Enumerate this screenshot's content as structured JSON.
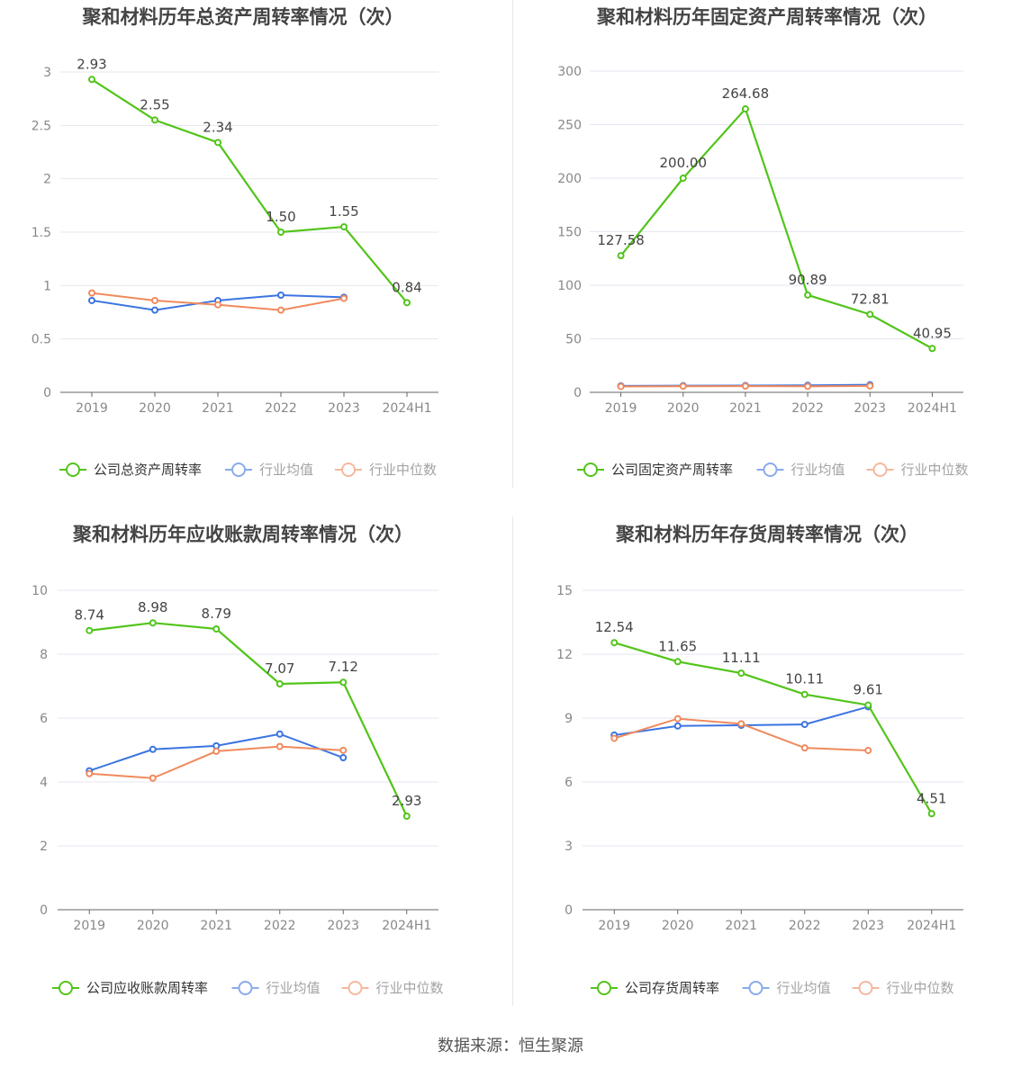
{
  "colors": {
    "company": "#52c41a",
    "industry_avg": "#3b74e0",
    "industry_median": "#f08a5d"
  },
  "legend_labels": {
    "avg": "行业均值",
    "median": "行业中位数"
  },
  "footer": "数据来源：恒生聚源",
  "chart_data": [
    {
      "type": "line",
      "title": "聚和材料历年总资产周转率情况（次）",
      "categories": [
        "2019",
        "2020",
        "2021",
        "2022",
        "2023",
        "2024H1"
      ],
      "ylim": [
        0,
        3
      ],
      "yticks": [
        "0",
        "0.5",
        "1",
        "1.5",
        "2",
        "2.5",
        "3"
      ],
      "series": [
        {
          "name": "公司总资产周转率",
          "key": "company",
          "values": [
            2.93,
            2.55,
            2.34,
            1.5,
            1.55,
            0.84
          ],
          "labels": [
            "2.93",
            "2.55",
            "2.34",
            "1.50",
            "1.55",
            "0.84"
          ]
        },
        {
          "name": "行业均值",
          "key": "avg",
          "values": [
            0.86,
            0.77,
            0.86,
            0.91,
            0.89,
            null
          ]
        },
        {
          "name": "行业中位数",
          "key": "median",
          "values": [
            0.93,
            0.86,
            0.82,
            0.77,
            0.88,
            null
          ]
        }
      ]
    },
    {
      "type": "line",
      "title": "聚和材料历年固定资产周转率情况（次）",
      "categories": [
        "2019",
        "2020",
        "2021",
        "2022",
        "2023",
        "2024H1"
      ],
      "ylim": [
        0,
        300
      ],
      "yticks": [
        "0",
        "50",
        "100",
        "150",
        "200",
        "250",
        "300"
      ],
      "series": [
        {
          "name": "公司固定资产周转率",
          "key": "company",
          "values": [
            127.58,
            200.0,
            264.68,
            90.89,
            72.81,
            40.95
          ],
          "labels": [
            "127.58",
            "200.00",
            "264.68",
            "90.89",
            "72.81",
            "40.95"
          ]
        },
        {
          "name": "行业均值",
          "key": "avg",
          "values": [
            6.0,
            6.2,
            6.3,
            6.5,
            7.0,
            null
          ]
        },
        {
          "name": "行业中位数",
          "key": "median",
          "values": [
            5.5,
            5.7,
            5.8,
            5.6,
            6.0,
            null
          ]
        }
      ]
    },
    {
      "type": "line",
      "title": "聚和材料历年应收账款周转率情况（次）",
      "categories": [
        "2019",
        "2020",
        "2021",
        "2022",
        "2023",
        "2024H1"
      ],
      "ylim": [
        0,
        10
      ],
      "yticks": [
        "0",
        "2",
        "4",
        "6",
        "8",
        "10"
      ],
      "series": [
        {
          "name": "公司应收账款周转率",
          "key": "company",
          "values": [
            8.74,
            8.98,
            8.79,
            7.07,
            7.12,
            2.93
          ],
          "labels": [
            "8.74",
            "8.98",
            "8.79",
            "7.07",
            "7.12",
            "2.93"
          ]
        },
        {
          "name": "行业均值",
          "key": "avg",
          "values": [
            4.35,
            5.02,
            5.13,
            5.5,
            4.76,
            null
          ]
        },
        {
          "name": "行业中位数",
          "key": "median",
          "values": [
            4.26,
            4.12,
            4.96,
            5.11,
            4.99,
            null
          ]
        }
      ]
    },
    {
      "type": "line",
      "title": "聚和材料历年存货周转率情况（次）",
      "categories": [
        "2019",
        "2020",
        "2021",
        "2022",
        "2023",
        "2024H1"
      ],
      "ylim": [
        0,
        15
      ],
      "yticks": [
        "0",
        "3",
        "6",
        "9",
        "12",
        "15"
      ],
      "series": [
        {
          "name": "公司存货周转率",
          "key": "company",
          "values": [
            12.54,
            11.65,
            11.11,
            10.11,
            9.61,
            4.51
          ],
          "labels": [
            "12.54",
            "11.65",
            "11.11",
            "10.11",
            "9.61",
            "4.51"
          ]
        },
        {
          "name": "行业均值",
          "key": "avg",
          "values": [
            8.2,
            8.63,
            8.66,
            8.7,
            9.53,
            null
          ]
        },
        {
          "name": "行业中位数",
          "key": "median",
          "values": [
            8.05,
            8.97,
            8.73,
            7.6,
            7.48,
            null
          ]
        }
      ]
    }
  ]
}
